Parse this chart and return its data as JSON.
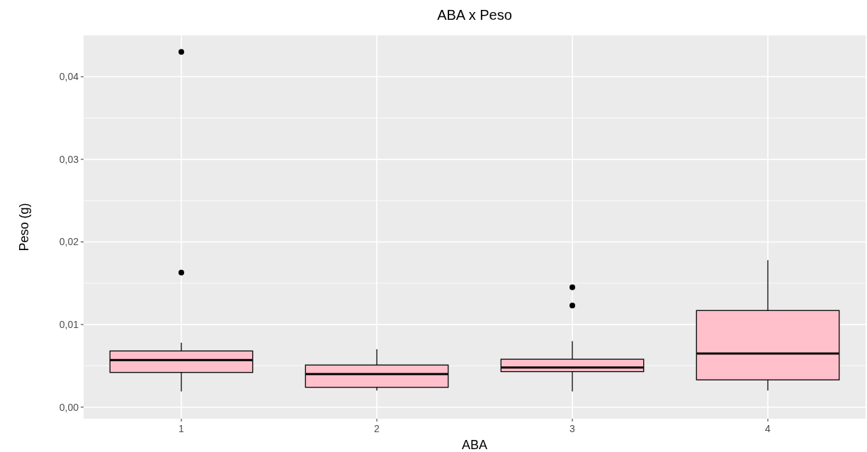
{
  "chart_data": {
    "type": "box",
    "title": "ABA x Peso",
    "xlabel": "ABA",
    "ylabel": "Peso (g)",
    "categories": [
      "1",
      "2",
      "3",
      "4"
    ],
    "color": "#ffc0cb",
    "boxes": [
      {
        "low": 0.0019,
        "q1": 0.0042,
        "median": 0.0057,
        "q3": 0.0068,
        "high": 0.0078,
        "outliers": [
          0.043,
          0.0163
        ]
      },
      {
        "low": 0.002,
        "q1": 0.0024,
        "median": 0.004,
        "q3": 0.0051,
        "high": 0.007
      },
      {
        "low": 0.0019,
        "q1": 0.0043,
        "median": 0.0048,
        "q3": 0.0058,
        "high": 0.008,
        "outliers": [
          0.0145,
          0.0123
        ]
      },
      {
        "low": 0.002,
        "q1": 0.0033,
        "median": 0.0065,
        "q3": 0.0117,
        "high": 0.0178
      }
    ],
    "ylim": [
      -0.0014,
      0.045
    ],
    "yticks": [
      {
        "value": 0,
        "label": "0,00"
      },
      {
        "value": 0.01,
        "label": "0,01"
      },
      {
        "value": 0.02,
        "label": "0,02"
      },
      {
        "value": 0.03,
        "label": "0,03"
      },
      {
        "value": 0.04,
        "label": "0,04"
      }
    ],
    "grid": true
  }
}
